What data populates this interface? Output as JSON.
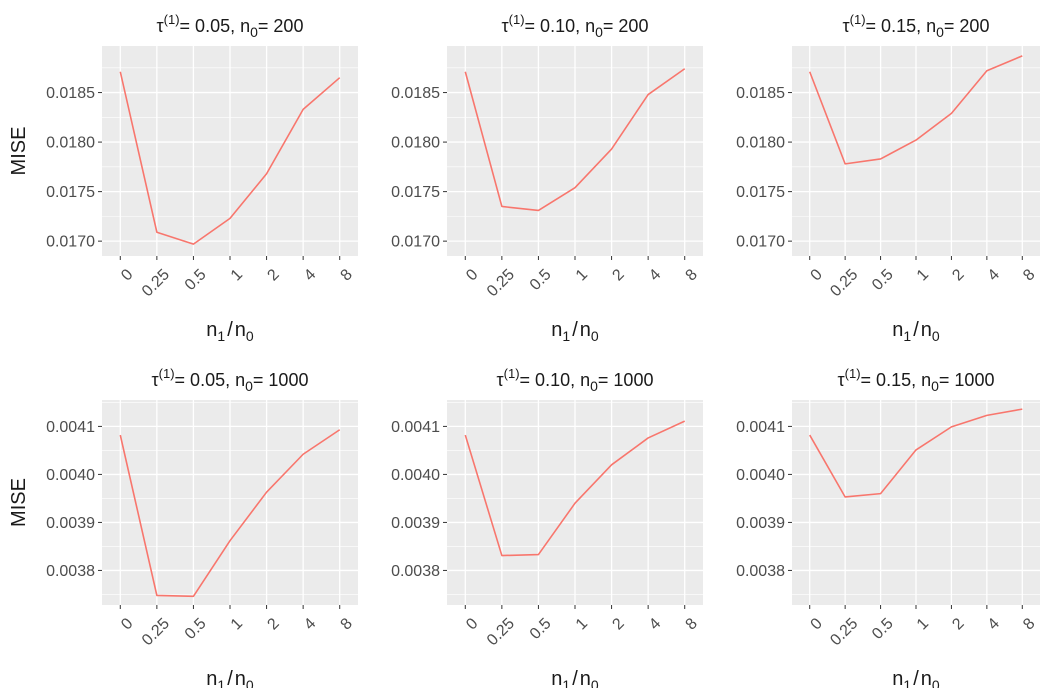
{
  "chart_data": {
    "type": "line",
    "layout": "2x3 facets",
    "line_color": "#F8766D",
    "panel_bg": "#EBEBEB",
    "grid_color": "#FFFFFF",
    "x_categories": [
      "0",
      "0.25",
      "0.5",
      "1",
      "2",
      "4",
      "8"
    ],
    "xlabel": {
      "n": "n",
      "sub1": "1",
      "sub0": "0",
      "slash": "/"
    },
    "ylabel": "MISE",
    "rows": [
      {
        "ylim": [
          0.01685,
          0.01897
        ],
        "yticks": [
          0.017,
          0.0175,
          0.018,
          0.0185
        ],
        "ytick_labels": [
          "0.0170",
          "0.0175",
          "0.0180",
          "0.0185"
        ],
        "panels": [
          {
            "title": {
              "tau": "τ",
              "sup": "(1)",
              "text": "= 0.05, n",
              "sub": "0",
              "tail": "= 200"
            },
            "values": [
              0.01871,
              0.01709,
              0.01697,
              0.01723,
              0.01768,
              0.01833,
              0.01865
            ]
          },
          {
            "title": {
              "tau": "τ",
              "sup": "(1)",
              "text": "= 0.10, n",
              "sub": "0",
              "tail": "= 200"
            },
            "values": [
              0.01871,
              0.01735,
              0.01731,
              0.01754,
              0.01793,
              0.01848,
              0.01874
            ]
          },
          {
            "title": {
              "tau": "τ",
              "sup": "(1)",
              "text": "= 0.15, n",
              "sub": "0",
              "tail": "= 200"
            },
            "values": [
              0.01871,
              0.01778,
              0.01783,
              0.01802,
              0.01829,
              0.01872,
              0.01887
            ]
          }
        ]
      },
      {
        "ylim": [
          0.003728,
          0.004155
        ],
        "yticks": [
          0.0038,
          0.0039,
          0.004,
          0.0041
        ],
        "ytick_labels": [
          "0.0038",
          "0.0039",
          "0.0040",
          "0.0041"
        ],
        "panels": [
          {
            "title": {
              "tau": "τ",
              "sup": "(1)",
              "text": "= 0.05, n",
              "sub": "0",
              "tail": "= 1000"
            },
            "values": [
              0.004082,
              0.003748,
              0.003746,
              0.003862,
              0.003963,
              0.004042,
              0.004093
            ]
          },
          {
            "title": {
              "tau": "τ",
              "sup": "(1)",
              "text": "= 0.10, n",
              "sub": "0",
              "tail": "= 1000"
            },
            "values": [
              0.004082,
              0.003831,
              0.003833,
              0.00394,
              0.00402,
              0.004076,
              0.004111
            ]
          },
          {
            "title": {
              "tau": "τ",
              "sup": "(1)",
              "text": "= 0.15, n",
              "sub": "0",
              "tail": "= 1000"
            },
            "values": [
              0.004082,
              0.003953,
              0.00396,
              0.004051,
              0.004099,
              0.004123,
              0.004136
            ]
          }
        ]
      }
    ]
  }
}
